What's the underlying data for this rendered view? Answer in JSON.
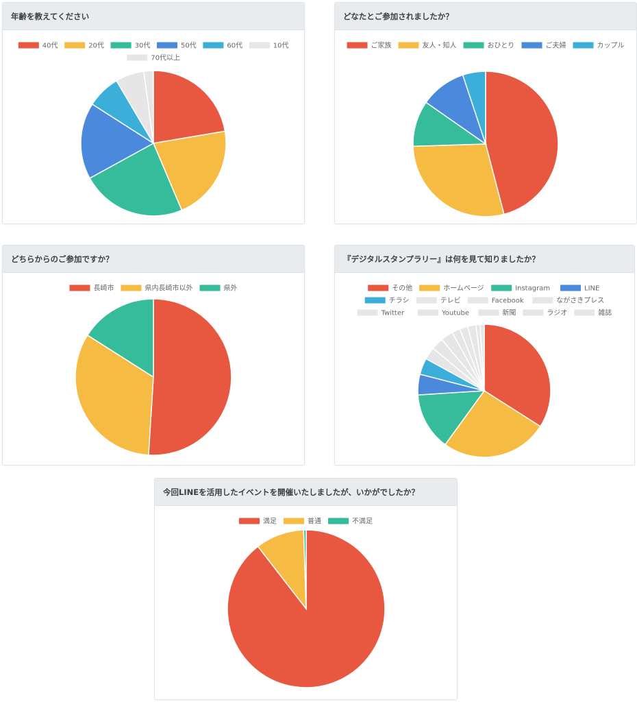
{
  "charts": [
    {
      "title": "年齢を教えてください",
      "chart_data": {
        "type": "pie",
        "categories": [
          "40代",
          "20代",
          "30代",
          "50代",
          "60代",
          "10代",
          "70代以上"
        ],
        "values": [
          21,
          20,
          22,
          16,
          7,
          6,
          2
        ],
        "colors": [
          "#e8573f",
          "#f6bb42",
          "#37bc9b",
          "#4a89dc",
          "#3bafda",
          "#e6e6e6",
          "#e6e6e6"
        ],
        "start_angle": -90,
        "legend_position": "top"
      }
    },
    {
      "title": "どなたとご参加されましたか？",
      "chart_data": {
        "type": "pie",
        "categories": [
          "ご家族",
          "友人・知人",
          "おひとり",
          "ご夫婦",
          "カップル"
        ],
        "values": [
          45,
          28,
          10,
          10,
          5
        ],
        "colors": [
          "#e8573f",
          "#f6bb42",
          "#37bc9b",
          "#4a89dc",
          "#3bafda"
        ],
        "start_angle": -90,
        "legend_position": "top"
      }
    },
    {
      "title": "どちらからのご参加ですか？",
      "chart_data": {
        "type": "pie",
        "categories": [
          "長崎市",
          "県内長崎市以外",
          "県外"
        ],
        "values": [
          51,
          33,
          16
        ],
        "colors": [
          "#e8573f",
          "#f6bb42",
          "#37bc9b"
        ],
        "start_angle": -90,
        "legend_position": "top"
      }
    },
    {
      "title": "『デジタルスタンプラリー』は何を見て知りましたか？",
      "chart_data": {
        "type": "pie",
        "categories": [
          "その他",
          "ホームページ",
          "Instagram",
          "LINE",
          "チラシ",
          "テレビ",
          "Facebook",
          "ながさきプレス",
          "Twitter",
          "Youtube",
          "新聞",
          "ラジオ",
          "雑誌"
        ],
        "values": [
          34,
          26,
          14,
          5,
          4,
          3,
          3,
          3,
          2,
          2,
          2,
          1,
          1
        ],
        "colors": [
          "#e8573f",
          "#f6bb42",
          "#37bc9b",
          "#4a89dc",
          "#3bafda",
          "#e6e6e6",
          "#e6e6e6",
          "#e6e6e6",
          "#e6e6e6",
          "#e6e6e6",
          "#e6e6e6",
          "#e6e6e6",
          "#e6e6e6"
        ],
        "start_angle": -90,
        "legend_position": "top"
      }
    },
    {
      "title": "今回LINEを活用したイベントを開催いたしましたが、いかがでしたか？",
      "chart_data": {
        "type": "pie",
        "categories": [
          "満足",
          "普通",
          "不満足"
        ],
        "values": [
          89.5,
          10,
          0.5
        ],
        "colors": [
          "#e8573f",
          "#f6bb42",
          "#37bc9b"
        ],
        "start_angle": -90,
        "legend_position": "top"
      }
    }
  ]
}
